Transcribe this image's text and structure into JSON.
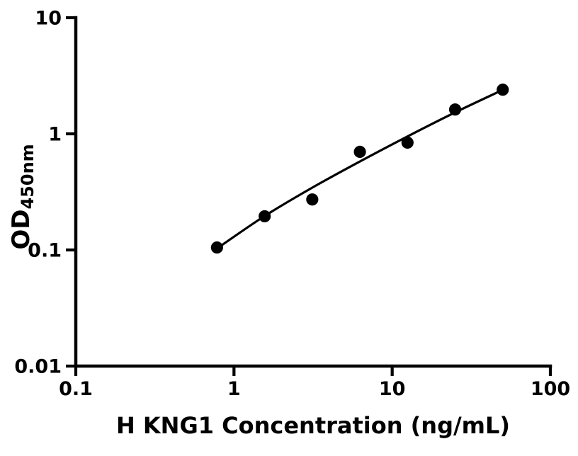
{
  "figure": {
    "background_color": "#ffffff",
    "ink_color": "#000000"
  },
  "chart_data": {
    "type": "scatter",
    "title": "",
    "xlabel": "H KNG1 Concentration (ng/mL)",
    "ylabel_main": "OD",
    "ylabel_sub": "450nm",
    "x_scale": "log",
    "y_scale": "log",
    "xlim": [
      0.1,
      100
    ],
    "ylim": [
      0.01,
      10
    ],
    "grid": false,
    "legend": null,
    "x_ticks": [
      {
        "value": 0.1,
        "label": "0.1"
      },
      {
        "value": 1,
        "label": "1"
      },
      {
        "value": 10,
        "label": "10"
      },
      {
        "value": 100,
        "label": "100"
      }
    ],
    "y_ticks": [
      {
        "value": 0.01,
        "label": "0.01"
      },
      {
        "value": 0.1,
        "label": "0.1"
      },
      {
        "value": 1,
        "label": "1"
      },
      {
        "value": 10,
        "label": "10"
      }
    ],
    "series": [
      {
        "name": "standard-data-points",
        "kind": "scatter",
        "marker": "circle",
        "marker_color": "#000000",
        "marker_radius": 8.6,
        "x": [
          0.781,
          1.563,
          3.125,
          6.25,
          12.5,
          25,
          50
        ],
        "y": [
          0.105,
          0.195,
          0.272,
          0.7,
          0.84,
          1.62,
          2.4
        ]
      },
      {
        "name": "fitted-curve",
        "kind": "line",
        "line_color": "#000000",
        "line_width": 3.2,
        "x": [
          0.781,
          1.563,
          3.125,
          6.25,
          12.5,
          25,
          50
        ],
        "y": [
          0.103,
          0.196,
          0.344,
          0.578,
          0.95,
          1.53,
          2.39
        ]
      }
    ]
  }
}
